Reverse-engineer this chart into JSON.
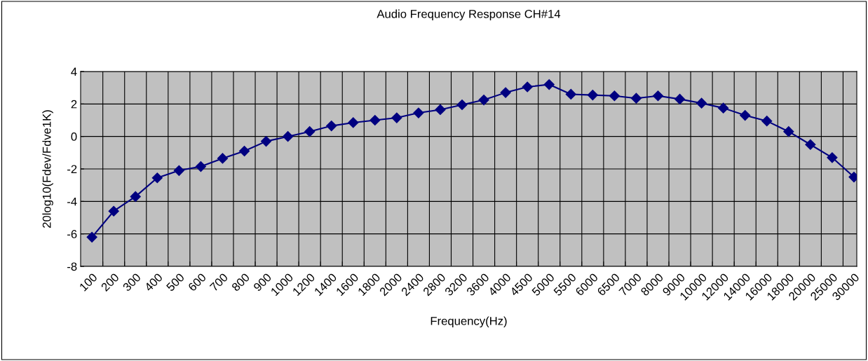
{
  "chart_data": {
    "type": "line",
    "title": "Audio Frequency Response CH#14",
    "xlabel": "Frequency(Hz)",
    "ylabel": "20log10(Fdev/Fdve1K)",
    "categories": [
      "100",
      "200",
      "300",
      "400",
      "500",
      "600",
      "700",
      "800",
      "900",
      "1000",
      "1200",
      "1400",
      "1600",
      "1800",
      "2000",
      "2400",
      "2800",
      "3200",
      "3600",
      "4000",
      "4500",
      "5000",
      "5500",
      "6000",
      "6500",
      "7000",
      "8000",
      "9000",
      "10000",
      "12000",
      "14000",
      "16000",
      "18000",
      "20000",
      "25000",
      "30000"
    ],
    "series": [
      {
        "color": "#000080",
        "values": [
          -6.2,
          -4.6,
          -3.7,
          -2.55,
          -2.1,
          -1.85,
          -1.35,
          -0.9,
          -0.3,
          0,
          0.3,
          0.65,
          0.85,
          1.0,
          1.15,
          1.45,
          1.65,
          1.95,
          2.25,
          2.7,
          3.05,
          3.2,
          2.6,
          2.55,
          2.5,
          2.35,
          2.5,
          2.3,
          2.05,
          1.75,
          1.3,
          0.95,
          0.3,
          -0.5,
          -1.3,
          -2.5
        ]
      }
    ],
    "ylim": [
      -8,
      4
    ],
    "yticks": [
      -8,
      -6,
      -4,
      -2,
      0,
      2,
      4
    ],
    "grid": true,
    "marker": "diamond",
    "line_style": "solid",
    "legend": false
  }
}
